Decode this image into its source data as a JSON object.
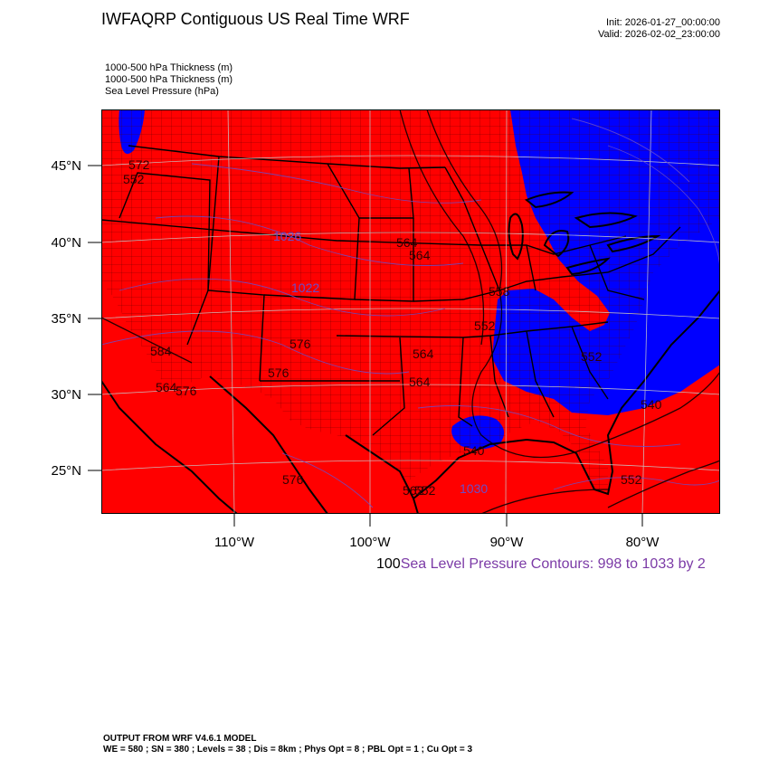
{
  "header": {
    "title": "IWFAQRP Contiguous US Real Time WRF",
    "init": "Init: 2026-01-27_00:00:00",
    "valid": "Valid: 2026-02-02_23:00:00"
  },
  "fields": [
    "1000-500 hPa Thickness   (m)",
    "1000-500 hPa Thickness   (m)",
    "Sea Level Pressure   (hPa)"
  ],
  "map": {
    "lat_ticks": [
      "45°N",
      "40°N",
      "35°N",
      "30°N",
      "25°N"
    ],
    "lon_ticks": [
      "110°W",
      "100°W",
      "90°W",
      "80°W"
    ],
    "colors": {
      "warm": "#ff0000",
      "cold": "#0000ff",
      "pressure": "#6a4dc9",
      "grid": "#c8c8c8"
    },
    "labels": {
      "l_572a": "572",
      "l_552a": "552",
      "l_564a": "564",
      "l_564b": "564",
      "l_558": "558",
      "l_552b": "552",
      "l_576a": "576",
      "l_576b": "576",
      "l_564c": "564",
      "l_584": "584",
      "l_576c": "576",
      "l_564d": "564",
      "l_564e": "564",
      "l_540a": "540",
      "l_540b": "540",
      "l_552c": "552",
      "l_552d": "552",
      "l_562": "562",
      "l_552e": "552",
      "l_576d": "576",
      "l_1030": "1030",
      "l_1022": "1022",
      "l_1026": "1026"
    }
  },
  "contour_info": {
    "prefix": "100",
    "text": "Sea Level Pressure Contours: 998 to 1033 by 2"
  },
  "footer": {
    "line1": "OUTPUT FROM WRF V4.6.1 MODEL",
    "line2": "WE = 580 ; SN = 380 ; Levels = 38 ; Dis = 8km ; Phys Opt = 8 ; PBL Opt = 1 ; Cu Opt = 3"
  }
}
